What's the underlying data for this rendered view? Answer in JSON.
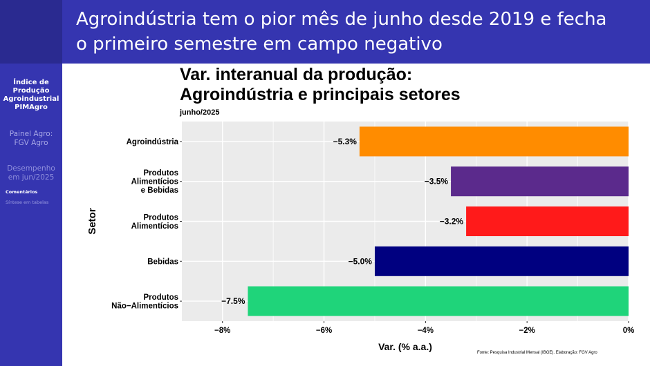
{
  "slide": {
    "title_line1": "Agroindústria tem o pior mês de junho desde 2019 e fecha",
    "title_line2": "o primeiro semestre em campo negativo"
  },
  "sidebar": {
    "items": [
      {
        "lines": [
          "Índice de",
          "Produção",
          "Agroindustrial",
          "PIMAgro"
        ]
      },
      {
        "lines": [
          "Painel Agro:",
          "FGV Agro"
        ]
      },
      {
        "lines": [
          "Desempenho",
          "em jun/2025"
        ]
      },
      {
        "label": "Comentários"
      },
      {
        "label": "Síntese em tabelas"
      }
    ]
  },
  "chart_data": {
    "type": "bar",
    "orientation": "horizontal",
    "title_line1": "Var. interanual da produção:",
    "title_line2": "Agroindústria e principais setores",
    "subtitle": "junho/2025",
    "xlabel": "Var. (% a.a.)",
    "ylabel": "Setor",
    "xlim": [
      -8.8,
      0
    ],
    "x_ticks": [
      -8,
      -6,
      -4,
      -2,
      0
    ],
    "x_tick_labels": [
      "−8%",
      "−6%",
      "−4%",
      "−2%",
      "0%"
    ],
    "grid": true,
    "categories": [
      {
        "lines": [
          "Agroindústria"
        ],
        "value": -5.3,
        "label": "−5.3%",
        "color": "#ff8c00"
      },
      {
        "lines": [
          "Produtos",
          "Alimentícios",
          "e Bebidas"
        ],
        "value": -3.5,
        "label": "−3.5%",
        "color": "#5b2a8c"
      },
      {
        "lines": [
          "Produtos",
          "Alimentícios"
        ],
        "value": -3.2,
        "label": "−3.2%",
        "color": "#ff1a1a"
      },
      {
        "lines": [
          "Bebidas"
        ],
        "value": -5.0,
        "label": "−5.0%",
        "color": "#000080"
      },
      {
        "lines": [
          "Produtos",
          "Não−Alimentícios"
        ],
        "value": -7.5,
        "label": "−7.5%",
        "color": "#1fd47a"
      }
    ],
    "panel_color": "#ebebeb",
    "grid_color": "#ffffff"
  },
  "source": "Fonte: Pesquisa Industrial Mensal (IBGE). Elaboração: FGV Agro"
}
